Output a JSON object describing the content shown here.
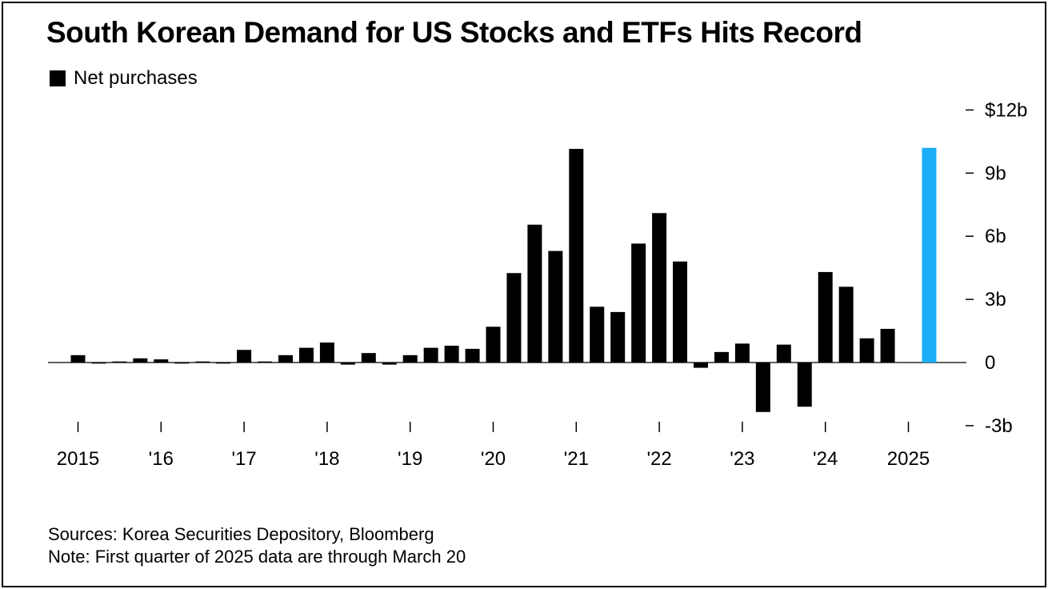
{
  "chart_data": {
    "type": "bar",
    "title": "South Korean Demand for US Stocks and ETFs Hits Record",
    "legend": {
      "placement": "top-left",
      "entries": [
        "Net purchases"
      ]
    },
    "series": [
      {
        "name": "Net purchases",
        "color": "#000000",
        "highlight_color": "#1CAEF6",
        "highlight_index": 41,
        "values": [
          0.35,
          -0.05,
          0.05,
          0.2,
          0.15,
          -0.05,
          0.05,
          -0.05,
          0.6,
          0.05,
          0.35,
          0.7,
          0.95,
          -0.1,
          0.45,
          -0.1,
          0.35,
          0.7,
          0.8,
          0.65,
          1.7,
          4.25,
          6.55,
          5.3,
          10.15,
          2.65,
          2.4,
          5.65,
          7.1,
          4.8,
          -0.25,
          0.5,
          0.9,
          -2.35,
          0.85,
          -2.1,
          4.3,
          3.6,
          1.15,
          1.6,
          0,
          10.2
        ]
      }
    ],
    "x_ticks": [
      "2015",
      "'16",
      "'17",
      "'18",
      "'19",
      "'20",
      "'21",
      "'22",
      "'23",
      "'24",
      "2025"
    ],
    "y_ticks": [
      "$12b",
      "9b",
      "6b",
      "3b",
      "0",
      "-3b"
    ],
    "ylim": [
      -3,
      12
    ],
    "y_axis_side": "right",
    "grid": false
  },
  "footer": {
    "sources": "Sources: Korea Securities Depository, Bloomberg",
    "note": "Note: First quarter of 2025 data are through March 20"
  }
}
